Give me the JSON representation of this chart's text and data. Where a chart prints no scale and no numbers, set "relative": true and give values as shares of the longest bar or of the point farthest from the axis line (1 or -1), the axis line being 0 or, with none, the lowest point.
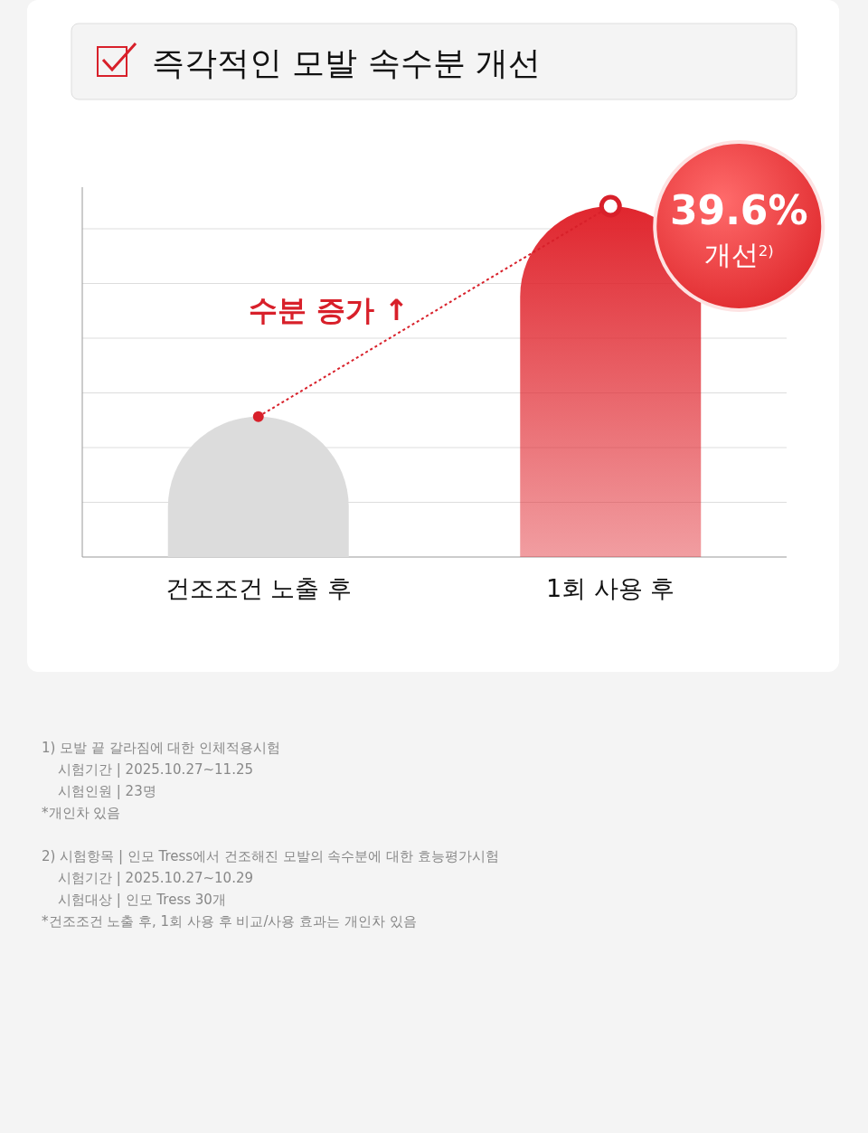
{
  "chart_data": {
    "type": "bar",
    "title": "즉각적인 모발 속수분 개선",
    "categories": [
      "건조조건 노출 후",
      "1회 사용 후"
    ],
    "relative": true,
    "grid": "y",
    "series": [
      {
        "colors": [
          "#dcdcdc",
          "#e0262e"
        ],
        "values": [
          0.4,
          1
        ]
      },
      {
        "type": "line",
        "color": "#d8202a",
        "line_style": "dotted",
        "marker": "circle",
        "values": [
          0.4,
          1
        ]
      }
    ],
    "annotations": [
      {
        "text": "39.6% 개선$^{2)}$",
        "x": "1회 사용 후",
        "y": 1
      },
      {
        "text": "수분 증가 ↑"
      },
      "1) 모발 끝 갈라짐에 대한 인체적용시험",
      "시험기간 | 2025.10.27~11.25",
      "시험인원 | 23명",
      "*개인차 있음",
      "2) 시험항목 | 인모 Tress에서 건조해진 모발의 속수분에 대한 효능평가시험",
      "시험기간 | 2025.10.27~10.29",
      "시험대상 | 인모 Tress 30개",
      "*건조조건 노출 후, 1회 사용 후 비교/사용 효과는 개인차 있음"
    ]
  }
}
